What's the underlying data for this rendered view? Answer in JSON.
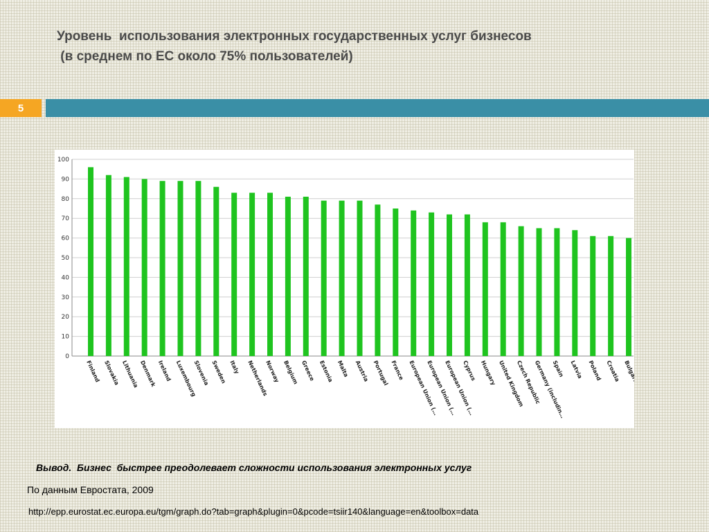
{
  "slide": {
    "title_line1": "Уровень  использования электронных государственных услуг бизнесов",
    "title_line2": " (в среднем по ЕС около 75% пользователей)",
    "number": "5",
    "conclusion": "Вывод.  Бизнес  быстрее преодолевает сложности использования электронных услуг",
    "source": "По данным Евростата, 2009",
    "url": "http://epp.eurostat.ec.europa.eu/tgm/graph.do?tab=graph&plugin=0&pcode=tsiir140&language=en&toolbox=data"
  },
  "colors": {
    "bar": "#1fc41f",
    "accent": "#f5a623",
    "teal": "#3a8fa6"
  },
  "chart_data": {
    "type": "bar",
    "title": "",
    "xlabel": "",
    "ylabel": "",
    "ylim": [
      0,
      100
    ],
    "yticks": [
      "0",
      "10",
      "20",
      "30",
      "40",
      "50",
      "60",
      "70",
      "80",
      "90",
      "100"
    ],
    "grid": true,
    "categories": [
      "Finland",
      "Slovakia",
      "Lithuania",
      "Denmark",
      "Ireland",
      "Luxembourg",
      "Slovenia",
      "Sweden",
      "Italy",
      "Netherlands",
      "Norway",
      "Belgium",
      "Greece",
      "Estonia",
      "Malta",
      "Austria",
      "Portugal",
      "France",
      "European Union (…",
      "European Union (…",
      "European Union (…",
      "Cyprus",
      "Hungary",
      "United Kingdom",
      "Czech Republic",
      "Germany (includin…",
      "Spain",
      "Latvia",
      "Poland",
      "Croatia",
      "Bulgaria"
    ],
    "values": [
      96,
      92,
      91,
      90,
      89,
      89,
      89,
      86,
      83,
      83,
      83,
      81,
      81,
      79,
      79,
      79,
      77,
      75,
      74,
      73,
      72,
      72,
      68,
      68,
      66,
      65,
      65,
      64,
      61,
      61,
      60
    ]
  }
}
